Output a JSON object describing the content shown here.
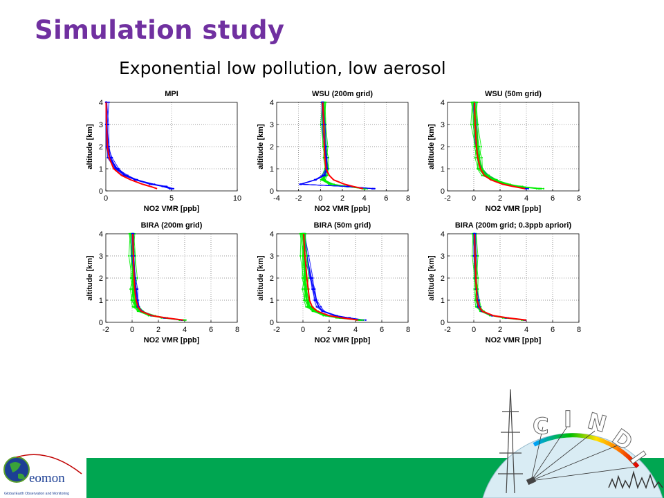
{
  "slide": {
    "title": "Simulation study",
    "subtitle": "Exponential low pollution, low aerosol"
  },
  "logos": {
    "geomon": {
      "text": "eomon",
      "tagline": "Global Earth Observation and Monitoring"
    },
    "cindi": {
      "letters": [
        "C",
        "I",
        "N",
        "D",
        "I"
      ]
    }
  },
  "colors": {
    "title": "#7030a0",
    "footer": "#00a651",
    "series_blue": "#0000ff",
    "series_green": "#00ee00",
    "series_red": "#ff0000"
  },
  "chart_data": [
    {
      "type": "line",
      "title": "MPI",
      "xlabel": "NO2 VMR [ppb]",
      "ylabel": "altitude [km]",
      "xlim": [
        0,
        10
      ],
      "ylim": [
        0,
        4
      ],
      "xticks": [
        "0",
        "5",
        "10"
      ],
      "yticks": [
        "0",
        "1",
        "2",
        "3",
        "4"
      ],
      "grid": true,
      "series": [
        {
          "color": "#0000ff",
          "spread": 0.22,
          "count": 10,
          "y": [
            4,
            3,
            2,
            1.5,
            1,
            0.7,
            0.5,
            0.3,
            0.2,
            0.1
          ],
          "x": [
            0.02,
            0.05,
            0.15,
            0.3,
            0.8,
            1.5,
            2.3,
            3.5,
            4.5,
            5.0
          ]
        },
        {
          "color": "#ff0000",
          "spread": 0,
          "count": 1,
          "y": [
            4,
            3,
            2,
            1.5,
            1,
            0.7,
            0.5,
            0.3,
            0.2,
            0.1
          ],
          "x": [
            0.02,
            0.05,
            0.12,
            0.25,
            0.6,
            1.2,
            1.9,
            2.8,
            3.4,
            3.9
          ]
        }
      ]
    },
    {
      "type": "line",
      "title": "WSU (200m grid)",
      "xlabel": "NO2 VMR [ppb]",
      "ylabel": "altitude [km]",
      "xlim": [
        -4,
        8
      ],
      "ylim": [
        0,
        4
      ],
      "xticks": [
        "-4",
        "-2",
        "0",
        "2",
        "4",
        "6",
        "8"
      ],
      "yticks": [
        "0",
        "1",
        "2",
        "3",
        "4"
      ],
      "grid": true,
      "series": [
        {
          "color": "#00ee00",
          "spread": 0.28,
          "count": 14,
          "y": [
            4,
            3,
            2,
            1.5,
            1,
            0.7,
            0.5,
            0.3,
            0.2,
            0.1
          ],
          "x": [
            0.3,
            0.3,
            0.4,
            0.5,
            0.6,
            0.4,
            0.2,
            1.0,
            2.5,
            4.0
          ]
        },
        {
          "color": "#0000ff",
          "spread": 0.15,
          "count": 6,
          "y": [
            4,
            3,
            2,
            1.5,
            1,
            0.7,
            0.5,
            0.3,
            0.2,
            0.1
          ],
          "x": [
            0.2,
            0.3,
            0.4,
            0.5,
            0.6,
            0.3,
            -0.5,
            -1.8,
            2.5,
            4.8
          ]
        },
        {
          "color": "#ff0000",
          "spread": 0,
          "count": 1,
          "y": [
            4,
            3,
            2,
            1.5,
            1,
            0.7,
            0.5,
            0.3,
            0.2,
            0.1
          ],
          "x": [
            0.2,
            0.3,
            0.35,
            0.4,
            0.5,
            0.8,
            1.2,
            2.2,
            3.0,
            3.9
          ]
        }
      ]
    },
    {
      "type": "line",
      "title": "WSU (50m grid)",
      "xlabel": "NO2 VMR [ppb]",
      "ylabel": "altitude [km]",
      "xlim": [
        -2,
        8
      ],
      "ylim": [
        0,
        4
      ],
      "xticks": [
        "-2",
        "0",
        "2",
        "4",
        "6",
        "8"
      ],
      "yticks": [
        "0",
        "1",
        "2",
        "3",
        "4"
      ],
      "grid": true,
      "series": [
        {
          "color": "#0000ff",
          "spread": 0.15,
          "count": 6,
          "y": [
            4,
            3,
            2,
            1.5,
            1,
            0.7,
            0.5,
            0.3,
            0.2,
            0.1
          ],
          "x": [
            0.05,
            0.1,
            0.2,
            0.35,
            0.6,
            1.0,
            1.6,
            2.5,
            3.3,
            4.0
          ]
        },
        {
          "color": "#00ee00",
          "spread": 0.32,
          "count": 14,
          "y": [
            4,
            3,
            2,
            1.5,
            1,
            0.7,
            0.5,
            0.3,
            0.2,
            0.1
          ],
          "x": [
            0.05,
            0.1,
            0.25,
            0.35,
            0.5,
            0.9,
            1.5,
            2.5,
            3.5,
            5.0
          ]
        },
        {
          "color": "#ff0000",
          "spread": 0,
          "count": 1,
          "y": [
            4,
            3,
            2,
            1.5,
            1,
            0.7,
            0.5,
            0.3,
            0.2,
            0.1
          ],
          "x": [
            0.05,
            0.1,
            0.2,
            0.3,
            0.5,
            0.8,
            1.3,
            2.2,
            3.0,
            3.9
          ]
        }
      ]
    },
    {
      "type": "line",
      "title": "BIRA (200m grid)",
      "xlabel": "NO2 VMR [ppb]",
      "ylabel": "altitude [km]",
      "xlim": [
        -2,
        8
      ],
      "ylim": [
        0,
        4
      ],
      "xticks": [
        "-2",
        "0",
        "2",
        "4",
        "6",
        "8"
      ],
      "yticks": [
        "0",
        "1",
        "2",
        "3",
        "4"
      ],
      "grid": true,
      "series": [
        {
          "color": "#00ee00",
          "spread": 0.3,
          "count": 14,
          "y": [
            4,
            3,
            2,
            1.5,
            1,
            0.7,
            0.5,
            0.3,
            0.2,
            0.1
          ],
          "x": [
            0.0,
            0.05,
            0.1,
            0.1,
            0.15,
            0.3,
            0.6,
            1.5,
            2.5,
            3.8
          ]
        },
        {
          "color": "#0000ff",
          "spread": 0.12,
          "count": 5,
          "y": [
            4,
            3,
            2,
            1.5,
            1,
            0.7,
            0.5,
            0.3,
            0.2,
            0.1
          ],
          "x": [
            0.05,
            0.1,
            0.2,
            0.3,
            0.4,
            0.5,
            0.7,
            1.5,
            2.5,
            3.8
          ]
        },
        {
          "color": "#ff0000",
          "spread": 0,
          "count": 1,
          "y": [
            4,
            3,
            2,
            1.5,
            1,
            0.7,
            0.5,
            0.3,
            0.2,
            0.1
          ],
          "x": [
            0.05,
            0.1,
            0.15,
            0.2,
            0.3,
            0.45,
            0.7,
            1.5,
            2.6,
            3.9
          ]
        }
      ]
    },
    {
      "type": "line",
      "title": "BIRA (50m grid)",
      "xlabel": "NO2 VMR [ppb]",
      "ylabel": "altitude [km]",
      "xlim": [
        -2,
        8
      ],
      "ylim": [
        0,
        4
      ],
      "xticks": [
        "-2",
        "0",
        "2",
        "4",
        "6",
        "8"
      ],
      "yticks": [
        "0",
        "1",
        "2",
        "3",
        "4"
      ],
      "grid": true,
      "series": [
        {
          "color": "#0000ff",
          "spread": 0.18,
          "count": 6,
          "y": [
            4,
            3,
            2,
            1.5,
            1,
            0.7,
            0.5,
            0.3,
            0.2,
            0.1
          ],
          "x": [
            0.1,
            0.3,
            0.6,
            0.8,
            1.0,
            1.2,
            1.5,
            2.5,
            3.5,
            4.6
          ]
        },
        {
          "color": "#00ee00",
          "spread": 0.3,
          "count": 14,
          "y": [
            4,
            3,
            2,
            1.5,
            1,
            0.7,
            0.5,
            0.3,
            0.2,
            0.1
          ],
          "x": [
            0.0,
            0.1,
            0.15,
            0.2,
            0.3,
            0.5,
            0.9,
            1.8,
            2.8,
            4.3
          ]
        },
        {
          "color": "#ff0000",
          "spread": 0,
          "count": 1,
          "y": [
            4,
            3,
            2,
            1.5,
            1,
            0.7,
            0.5,
            0.3,
            0.2,
            0.1
          ],
          "x": [
            0.05,
            0.15,
            0.3,
            0.4,
            0.5,
            0.7,
            1.1,
            2.0,
            3.0,
            4.2
          ]
        }
      ]
    },
    {
      "type": "line",
      "title": "BIRA (200m grid; 0.3ppb apriori)",
      "xlabel": "NO2 VMR [ppb]",
      "ylabel": "altitude [km]",
      "xlim": [
        -2,
        8
      ],
      "ylim": [
        0,
        4
      ],
      "xticks": [
        "-2",
        "0",
        "2",
        "4",
        "6",
        "8"
      ],
      "yticks": [
        "0",
        "1",
        "2",
        "3",
        "4"
      ],
      "grid": true,
      "series": [
        {
          "color": "#00ee00",
          "spread": 0.22,
          "count": 12,
          "y": [
            4,
            3,
            2,
            1.5,
            1,
            0.7,
            0.5,
            0.3,
            0.2,
            0.1
          ],
          "x": [
            0.05,
            0.1,
            0.15,
            0.2,
            0.25,
            0.35,
            0.6,
            1.4,
            2.4,
            3.8
          ]
        },
        {
          "color": "#0000ff",
          "spread": 0.1,
          "count": 4,
          "y": [
            4,
            3,
            2,
            1.5,
            1,
            0.7,
            0.5,
            0.3,
            0.2,
            0.1
          ],
          "x": [
            0.05,
            0.1,
            0.15,
            0.2,
            0.3,
            0.4,
            0.6,
            1.4,
            2.5,
            3.9
          ]
        },
        {
          "color": "#ff0000",
          "spread": 0,
          "count": 1,
          "y": [
            4,
            3,
            2,
            1.5,
            1,
            0.7,
            0.5,
            0.3,
            0.2,
            0.1
          ],
          "x": [
            0.05,
            0.1,
            0.15,
            0.2,
            0.25,
            0.4,
            0.65,
            1.5,
            2.6,
            4.0
          ]
        }
      ]
    }
  ]
}
